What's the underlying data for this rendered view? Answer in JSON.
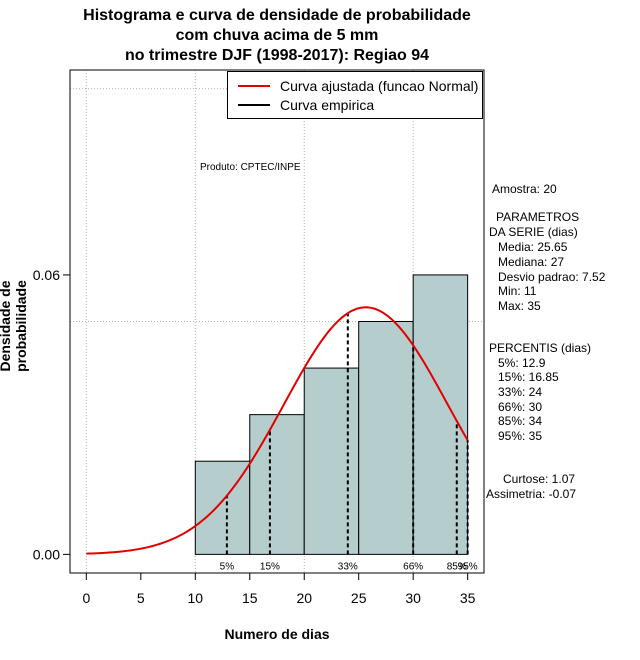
{
  "title_lines": [
    "Histograma e curva de densidade de probabilidade",
    "com chuva acima de 5 mm",
    "no trimestre DJF (1998-2017): Regiao 94"
  ],
  "product_label": "Produto: CPTEC/INPE",
  "legend": {
    "normal": "Curva ajustada (funcao Normal)",
    "empirical": "Curva empirica",
    "normal_color": "#e00000",
    "empirical_color": "#000000"
  },
  "side_panel": {
    "amostra": "Amostra: 20",
    "param_title_1": "PARAMETROS",
    "param_title_2": "DA SERIE (dias)",
    "media": "Media: 25.65",
    "mediana": "Mediana: 27",
    "desvio": "Desvio padrao: 7.52",
    "min": "Min: 11",
    "max": "Max: 35",
    "perc_title": "PERCENTIS (dias)",
    "p5": "5%: 12.9",
    "p15": "15%: 16.85",
    "p33": "33%: 24",
    "p66": "66%: 30",
    "p85": "85%: 34",
    "p95": "95%: 35",
    "curtose": "Curtose: 1.07",
    "assimetria": "Assimetria: -0.07"
  },
  "chart_data": {
    "type": "bar",
    "title": "Histograma e curva de densidade de probabilidade com chuva acima de 5 mm no trimestre DJF (1998-2017): Regiao 94",
    "xlabel": "Numero de dias",
    "ylabel": "Densidade de probabilidade",
    "xlim": [
      -1.5,
      36.5
    ],
    "ylim": [
      -0.004,
      0.104
    ],
    "x_ticks": [
      0,
      5,
      10,
      15,
      20,
      25,
      30,
      35
    ],
    "y_ticks": [
      0.0,
      0.06
    ],
    "y_tick_labels": [
      "0.00",
      "0.06"
    ],
    "bins": [
      {
        "x0": 10,
        "x1": 15,
        "density": 0.02
      },
      {
        "x0": 15,
        "x1": 20,
        "density": 0.03
      },
      {
        "x0": 20,
        "x1": 25,
        "density": 0.04
      },
      {
        "x0": 25,
        "x1": 30,
        "density": 0.05
      },
      {
        "x0": 30,
        "x1": 35,
        "density": 0.06
      }
    ],
    "bar_color": "#b5cecd",
    "grid_x": [
      0,
      10,
      20,
      30
    ],
    "grid_y": [
      0.05,
      0.1
    ],
    "normal": {
      "mean": 25.65,
      "sd": 7.52,
      "x_range": [
        0,
        35
      ],
      "color": "#e00000"
    },
    "percentiles": [
      {
        "label": "5%",
        "x": 12.9
      },
      {
        "label": "15%",
        "x": 16.85
      },
      {
        "label": "33%",
        "x": 24
      },
      {
        "label": "66%",
        "x": 30
      },
      {
        "label": "85%",
        "x": 34
      },
      {
        "label": "95%",
        "x": 35
      }
    ]
  }
}
